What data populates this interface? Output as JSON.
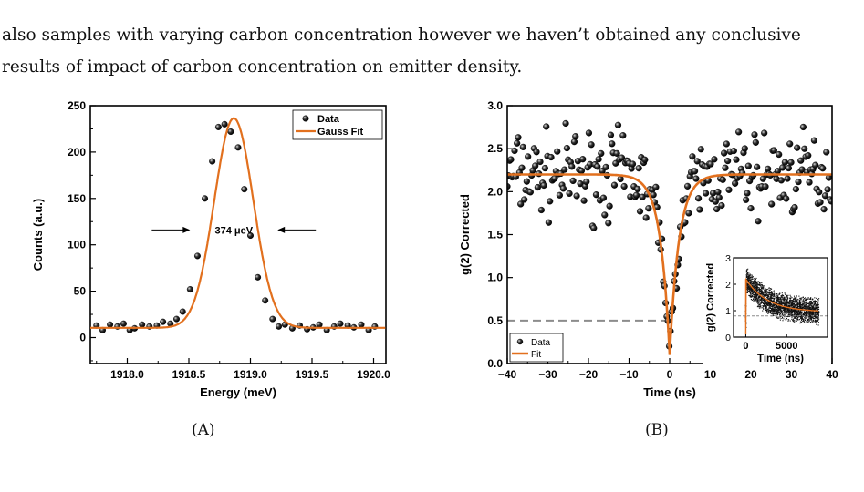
{
  "paragraph": {
    "line1": "also samples with varying carbon concentration however we haven’t obtained any conclusive",
    "line2": "results of impact of carbon concentration on emitter density."
  },
  "captions": {
    "a": "(A)",
    "b": "(B)"
  },
  "colors": {
    "fit": "#E2701E",
    "marker": "#1a1a1a",
    "axis": "#000000",
    "dashed": "#8c8c8c"
  },
  "chart_data": [
    {
      "type": "scatter",
      "xlabel": "Energy (meV)",
      "ylabel": "Counts (a.u.)",
      "xlim": [
        1917.7,
        1920.1
      ],
      "ylim": [
        -28,
        250
      ],
      "xticks": [
        1918.0,
        1918.5,
        1919.0,
        1919.5,
        1920.0
      ],
      "xtick_labels": [
        "1918.0",
        "1918.5",
        "1919.0",
        "1919.5",
        "1920.0"
      ],
      "yticks": [
        0,
        50,
        100,
        150,
        200,
        250
      ],
      "ytick_labels": [
        "0",
        "50",
        "100",
        "150",
        "200",
        "250"
      ],
      "legend": {
        "position": "top-right",
        "entries": [
          "Data",
          "Gauss Fit"
        ]
      },
      "annotation": "374 μeV",
      "annotation_arrow_x": [
        1918.51,
        1919.22
      ],
      "annotation_y": 116,
      "series": [
        {
          "name": "Data",
          "kind": "points",
          "x": [
            1917.75,
            1917.8,
            1917.86,
            1917.92,
            1917.97,
            1918.02,
            1918.06,
            1918.12,
            1918.18,
            1918.24,
            1918.29,
            1918.35,
            1918.4,
            1918.45,
            1918.51,
            1918.57,
            1918.63,
            1918.69,
            1918.74,
            1918.79,
            1918.84,
            1918.9,
            1918.95,
            1919.0,
            1919.06,
            1919.12,
            1919.18,
            1919.23,
            1919.28,
            1919.34,
            1919.4,
            1919.46,
            1919.51,
            1919.56,
            1919.62,
            1919.68,
            1919.73,
            1919.79,
            1919.84,
            1919.9,
            1919.96,
            1920.01
          ],
          "y": [
            13,
            8,
            14,
            12,
            15,
            8,
            10,
            14,
            12,
            13,
            17,
            15,
            20,
            28,
            52,
            88,
            150,
            190,
            227,
            230,
            222,
            205,
            160,
            110,
            65,
            40,
            20,
            12,
            14,
            10,
            13,
            9,
            11,
            14,
            8,
            12,
            15,
            13,
            11,
            14,
            8,
            12
          ]
        },
        {
          "name": "Gauss Fit",
          "kind": "gaussian",
          "y0": 10.5,
          "amplitude": 226,
          "center": 1918.865,
          "fwhm": 0.374
        }
      ]
    },
    {
      "type": "scatter",
      "xlabel": "Time (ns)",
      "ylabel": "g(2) Corrected",
      "xlim": [
        -40,
        40
      ],
      "ylim": [
        0,
        3.0
      ],
      "xticks": [
        -40,
        -30,
        -20,
        -10,
        0,
        10,
        20,
        30,
        40
      ],
      "xtick_labels": [
        "−40",
        "−30",
        "−20",
        "−10",
        "0",
        "10",
        "20",
        "30",
        "40"
      ],
      "yticks": [
        0,
        0.5,
        1.0,
        1.5,
        2.0,
        2.5,
        3.0
      ],
      "ytick_labels": [
        "0.0",
        "0.5",
        "1.0",
        "1.5",
        "2.0",
        "2.5",
        "3.0"
      ],
      "legend": {
        "position": "bottom-left",
        "entries": [
          "Data",
          "Fit"
        ]
      },
      "dashed_line_y": 0.5,
      "series": [
        {
          "name": "Data",
          "kind": "points",
          "x_range": [
            -40,
            40
          ],
          "step": 0.3,
          "dip_center": 0,
          "dip_depth": 2.1,
          "dip_width": 2.3,
          "baseline": 2.2,
          "noise": 0.3
        },
        {
          "name": "Fit",
          "kind": "antibunching",
          "baseline": 2.2,
          "min": 0.1,
          "tau": 2.3
        }
      ],
      "inset": {
        "xlabel": "Time (ns)",
        "ylabel": "g(2) Corrected",
        "xlim": [
          -1500,
          10000
        ],
        "ylim": [
          0,
          3
        ],
        "xticks": [
          0,
          5000
        ],
        "xtick_labels": [
          "0",
          "5000"
        ],
        "yticks": [
          0,
          1,
          2,
          3
        ],
        "ytick_labels": [
          "0",
          "1",
          "2",
          "3"
        ]
      }
    }
  ]
}
